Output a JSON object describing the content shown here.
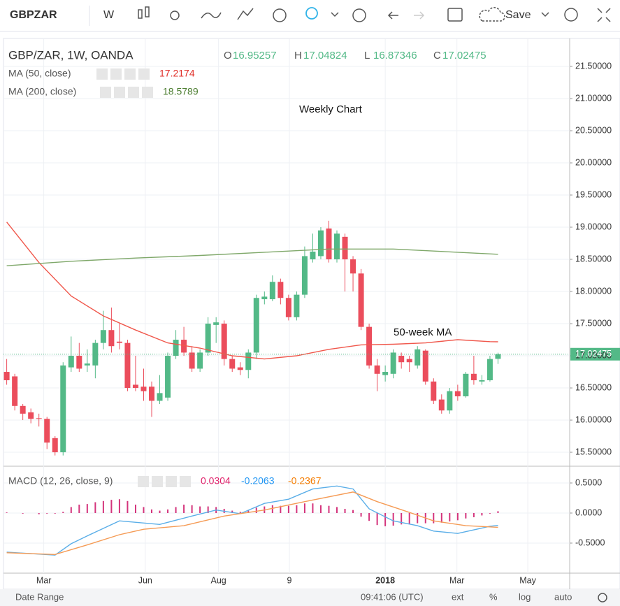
{
  "toolbar": {
    "symbol": "GBPZAR",
    "interval": "W",
    "save": "Save"
  },
  "footer": {
    "date_range": "Date Range",
    "time": "09:41:06 (UTC)",
    "ext": "ext",
    "percent": "%",
    "log": "log",
    "auto": "auto"
  },
  "chart_data": [
    {
      "type": "candlestick",
      "title": "GBP/ZAR, 1W, OANDA",
      "ohlc_letters": [
        "O",
        "H",
        "L",
        "C"
      ],
      "annotations": [
        "Weekly Chart",
        "50-week MA"
      ],
      "up_color": "#53b987",
      "down_color": "#eb4d5c",
      "xlim": [
        -0.4,
        69.9
      ],
      "xticks": [
        {
          "value": 4.6,
          "label": "Mar"
        },
        {
          "value": 17.2,
          "label": "Jun"
        },
        {
          "value": 26.3,
          "label": "Aug"
        },
        {
          "value": 35.1,
          "label": "9"
        },
        {
          "value": 47.0,
          "label": "2018"
        },
        {
          "value": 55.9,
          "label": "Mar"
        },
        {
          "value": 64.7,
          "label": "May"
        }
      ],
      "ylim": [
        15.283,
        21.935
      ],
      "yticks": [
        {
          "value": 15.5,
          "label": "15.50000"
        },
        {
          "value": 16.0,
          "label": "16.00000"
        },
        {
          "value": 16.5,
          "label": "16.50000"
        },
        {
          "value": 17.0,
          "label": "17.00000"
        },
        {
          "value": 17.5,
          "label": "17.50000"
        },
        {
          "value": 18.0,
          "label": "18.00000"
        },
        {
          "value": 18.5,
          "label": "18.50000"
        },
        {
          "value": 19.0,
          "label": "19.00000"
        },
        {
          "value": 19.5,
          "label": "19.50000"
        },
        {
          "value": 20.0,
          "label": "20.00000"
        },
        {
          "value": 20.5,
          "label": "20.50000"
        },
        {
          "value": 21.0,
          "label": "21.00000"
        },
        {
          "value": 21.5,
          "label": "21.50000"
        }
      ],
      "grid": true,
      "candles": [
        {
          "open": 16.75,
          "high": 16.95,
          "low": 16.55,
          "close": 16.62
        },
        {
          "open": 16.68,
          "high": 16.72,
          "low": 16.15,
          "close": 16.22
        },
        {
          "open": 16.22,
          "high": 16.25,
          "low": 16.0,
          "close": 16.1
        },
        {
          "open": 16.12,
          "high": 16.18,
          "low": 15.95,
          "close": 16.02
        },
        {
          "open": 16.03,
          "high": 16.1,
          "low": 15.9,
          "close": 16.02
        },
        {
          "open": 16.02,
          "high": 16.05,
          "low": 15.55,
          "close": 15.65
        },
        {
          "open": 15.72,
          "high": 15.75,
          "low": 15.45,
          "close": 15.5
        },
        {
          "open": 15.5,
          "high": 16.9,
          "low": 15.45,
          "close": 16.85
        },
        {
          "open": 16.82,
          "high": 17.3,
          "low": 16.75,
          "close": 17.0
        },
        {
          "open": 17.0,
          "high": 17.2,
          "low": 16.75,
          "close": 16.8
        },
        {
          "open": 16.85,
          "high": 17.1,
          "low": 16.75,
          "close": 16.88
        },
        {
          "open": 16.85,
          "high": 17.25,
          "low": 16.65,
          "close": 17.2
        },
        {
          "open": 17.2,
          "high": 17.7,
          "low": 17.1,
          "close": 17.4
        },
        {
          "open": 17.4,
          "high": 17.75,
          "low": 17.05,
          "close": 17.15
        },
        {
          "open": 17.22,
          "high": 17.5,
          "low": 17.1,
          "close": 17.2
        },
        {
          "open": 17.2,
          "high": 17.25,
          "low": 16.45,
          "close": 16.5
        },
        {
          "open": 16.55,
          "high": 17.0,
          "low": 16.45,
          "close": 16.5
        },
        {
          "open": 16.52,
          "high": 16.8,
          "low": 16.3,
          "close": 16.45
        },
        {
          "open": 16.52,
          "high": 16.6,
          "low": 16.05,
          "close": 16.3
        },
        {
          "open": 16.3,
          "high": 16.7,
          "low": 16.25,
          "close": 16.42
        },
        {
          "open": 16.35,
          "high": 17.05,
          "low": 16.3,
          "close": 17.0
        },
        {
          "open": 17.0,
          "high": 17.4,
          "low": 16.95,
          "close": 17.25
        },
        {
          "open": 17.25,
          "high": 17.45,
          "low": 17.0,
          "close": 17.05
        },
        {
          "open": 17.05,
          "high": 17.15,
          "low": 16.75,
          "close": 16.8
        },
        {
          "open": 16.8,
          "high": 17.1,
          "low": 16.75,
          "close": 17.05
        },
        {
          "open": 17.05,
          "high": 17.6,
          "low": 17.0,
          "close": 17.5
        },
        {
          "open": 17.48,
          "high": 17.6,
          "low": 17.2,
          "close": 17.52
        },
        {
          "open": 17.5,
          "high": 17.55,
          "low": 16.85,
          "close": 16.95
        },
        {
          "open": 16.95,
          "high": 17.0,
          "low": 16.75,
          "close": 16.8
        },
        {
          "open": 16.82,
          "high": 16.9,
          "low": 16.7,
          "close": 16.78
        },
        {
          "open": 16.78,
          "high": 17.1,
          "low": 16.65,
          "close": 17.05
        },
        {
          "open": 17.05,
          "high": 17.95,
          "low": 16.95,
          "close": 17.9
        },
        {
          "open": 17.88,
          "high": 18.0,
          "low": 17.8,
          "close": 17.92
        },
        {
          "open": 17.88,
          "high": 18.25,
          "low": 17.85,
          "close": 18.15
        },
        {
          "open": 18.15,
          "high": 18.2,
          "low": 17.8,
          "close": 17.9
        },
        {
          "open": 17.9,
          "high": 17.95,
          "low": 17.55,
          "close": 17.6
        },
        {
          "open": 17.6,
          "high": 18.0,
          "low": 17.55,
          "close": 17.95
        },
        {
          "open": 17.95,
          "high": 18.7,
          "low": 17.9,
          "close": 18.55
        },
        {
          "open": 18.5,
          "high": 18.9,
          "low": 18.45,
          "close": 18.62
        },
        {
          "open": 18.55,
          "high": 19.0,
          "low": 18.5,
          "close": 18.95
        },
        {
          "open": 18.98,
          "high": 19.1,
          "low": 18.45,
          "close": 18.5
        },
        {
          "open": 18.5,
          "high": 18.95,
          "low": 18.45,
          "close": 18.9
        },
        {
          "open": 18.85,
          "high": 18.9,
          "low": 18.0,
          "close": 18.5
        },
        {
          "open": 18.5,
          "high": 18.55,
          "low": 18.0,
          "close": 18.28
        },
        {
          "open": 18.28,
          "high": 18.35,
          "low": 17.4,
          "close": 17.45
        },
        {
          "open": 17.45,
          "high": 17.5,
          "low": 16.8,
          "close": 16.85
        },
        {
          "open": 16.85,
          "high": 16.95,
          "low": 16.45,
          "close": 16.72
        },
        {
          "open": 16.7,
          "high": 16.85,
          "low": 16.6,
          "close": 16.75
        },
        {
          "open": 16.72,
          "high": 17.1,
          "low": 16.65,
          "close": 17.05
        },
        {
          "open": 17.0,
          "high": 17.05,
          "low": 16.8,
          "close": 16.9
        },
        {
          "open": 16.95,
          "high": 17.0,
          "low": 16.75,
          "close": 16.9
        },
        {
          "open": 16.85,
          "high": 17.15,
          "low": 16.8,
          "close": 17.1
        },
        {
          "open": 17.08,
          "high": 17.1,
          "low": 16.55,
          "close": 16.6
        },
        {
          "open": 16.6,
          "high": 16.65,
          "low": 16.25,
          "close": 16.3
        },
        {
          "open": 16.32,
          "high": 16.4,
          "low": 16.1,
          "close": 16.15
        },
        {
          "open": 16.15,
          "high": 16.5,
          "low": 16.1,
          "close": 16.45
        },
        {
          "open": 16.45,
          "high": 16.55,
          "low": 16.3,
          "close": 16.37
        },
        {
          "open": 16.37,
          "high": 16.75,
          "low": 16.35,
          "close": 16.72
        },
        {
          "open": 16.72,
          "high": 17.0,
          "low": 16.55,
          "close": 16.62
        },
        {
          "open": 16.6,
          "high": 16.7,
          "low": 16.55,
          "close": 16.62
        },
        {
          "open": 16.62,
          "high": 17.0,
          "low": 16.6,
          "close": 16.95
        },
        {
          "open": 16.95257,
          "high": 17.04824,
          "low": 16.87346,
          "close": 17.02475
        }
      ],
      "series": [
        {
          "name": "MA (50, close)",
          "color": "#f0574b",
          "x": [
            0,
            4,
            8,
            12,
            16,
            20,
            24,
            28,
            32,
            36,
            40,
            44,
            48,
            52,
            56,
            60,
            61
          ],
          "values": [
            19.08,
            18.45,
            17.93,
            17.62,
            17.4,
            17.2,
            17.12,
            17.0,
            16.95,
            17.0,
            17.1,
            17.17,
            17.18,
            17.2,
            17.25,
            17.22,
            17.2174
          ]
        },
        {
          "name": "MA (200, close)",
          "color": "#7fa86a",
          "x": [
            0,
            8,
            16,
            24,
            32,
            40,
            48,
            56,
            61
          ],
          "values": [
            18.4,
            18.47,
            18.52,
            18.56,
            18.61,
            18.66,
            18.66,
            18.61,
            18.5789
          ]
        }
      ]
    },
    {
      "type": "macd",
      "title": "MACD (12, 26, close, 9)",
      "xlim": [
        -0.4,
        69.9
      ],
      "ylim": [
        -1.0,
        0.779
      ],
      "yticks": [
        {
          "value": 0.5,
          "label": "0.5000"
        },
        {
          "value": 0,
          "label": "0.0000"
        },
        {
          "value": -0.5,
          "label": "-0.5000"
        }
      ],
      "grid": true,
      "histogram": {
        "color": "#d4347c",
        "values": [
          0.01,
          0,
          -0.01,
          0,
          -0.02,
          -0.01,
          -0.01,
          0.02,
          0.1,
          0.14,
          0.15,
          0.18,
          0.2,
          0.22,
          0.23,
          0.2,
          0.14,
          0.1,
          0.06,
          0.04,
          0.06,
          0.1,
          0.14,
          0.13,
          0.11,
          0.11,
          0.1,
          0.07,
          0.04,
          0.02,
          0.05,
          0.09,
          0.11,
          0.13,
          0.12,
          0.12,
          0.13,
          0.16,
          0.16,
          0.13,
          0.12,
          0.1,
          0.07,
          0.05,
          -0.06,
          -0.13,
          -0.2,
          -0.22,
          -0.21,
          -0.19,
          -0.18,
          -0.17,
          -0.17,
          -0.17,
          -0.16,
          -0.14,
          -0.12,
          -0.09,
          -0.07,
          -0.04,
          -0.01,
          0.0304
        ]
      },
      "series": [
        {
          "color": "#5aaee8",
          "x": [
            0,
            6,
            8,
            10,
            14,
            19,
            23,
            26,
            29,
            32,
            35,
            38,
            41,
            43,
            45,
            48,
            51,
            53,
            56,
            60,
            61
          ],
          "values": [
            -0.65,
            -0.7,
            -0.51,
            -0.38,
            -0.13,
            -0.19,
            -0.05,
            0.05,
            -0.01,
            0.16,
            0.23,
            0.4,
            0.45,
            0.4,
            0.07,
            -0.13,
            -0.21,
            -0.3,
            -0.34,
            -0.22,
            -0.2063
          ]
        },
        {
          "color": "#f59b55",
          "x": [
            0,
            6,
            10,
            14,
            17,
            22,
            27,
            32,
            37,
            43,
            46,
            50,
            53,
            57,
            61
          ],
          "values": [
            -0.66,
            -0.69,
            -0.53,
            -0.36,
            -0.27,
            -0.21,
            -0.05,
            0.05,
            0.19,
            0.35,
            0.19,
            0.01,
            -0.13,
            -0.21,
            -0.2367
          ]
        }
      ]
    }
  ]
}
